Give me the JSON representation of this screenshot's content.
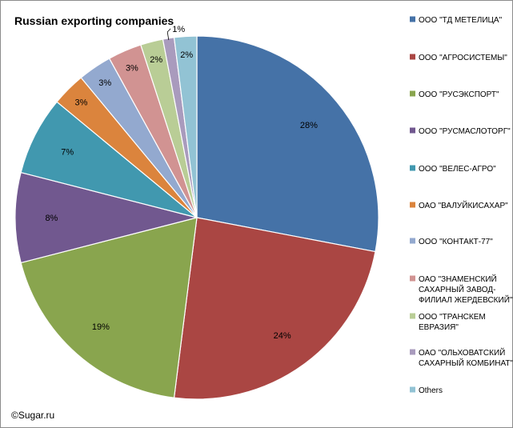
{
  "credit": "©Sugar.ru",
  "chart_data": {
    "type": "pie",
    "title": "Russian exporting companies",
    "start_angle_deg": 0,
    "direction": "clockwise",
    "legend_position": "right",
    "slices": [
      {
        "name": "ООО \"ТД МЕТЕЛИЦА\"",
        "value": 28,
        "label": "28%",
        "color": "#4572A7"
      },
      {
        "name": "ООО \"АГРОСИСТЕМЫ\"",
        "value": 24,
        "label": "24%",
        "color": "#AA4643"
      },
      {
        "name": "ООО \"РУСЭКСПОРТ\"",
        "value": 19,
        "label": "19%",
        "color": "#89A54E"
      },
      {
        "name": "ООО \"РУСМАСЛОТОРГ\"",
        "value": 8,
        "label": "8%",
        "color": "#71588F"
      },
      {
        "name": "ООО \"ВЕЛЕС-АГРО\"",
        "value": 7,
        "label": "7%",
        "color": "#4198AF"
      },
      {
        "name": "ОАО \"ВАЛУЙКИСАХАР\"",
        "value": 3,
        "label": "3%",
        "color": "#DB843D"
      },
      {
        "name": "ООО \"КОНТАКТ-77\"",
        "value": 3,
        "label": "3%",
        "color": "#93A9CF"
      },
      {
        "name": "ОАО \"ЗНАМЕНСКИЙ САХАРНЫЙ ЗАВОД-ФИЛИАЛ ЖЕРДЕВСКИЙ\"",
        "value": 3,
        "label": "3%",
        "color": "#D19392"
      },
      {
        "name": "ООО \"ТРАНСКЕМ ЕВРАЗИЯ\"",
        "value": 2,
        "label": "2%",
        "color": "#B9CD96"
      },
      {
        "name": "ОАО \"ОЛЬХОВАТСКИЙ САХАРНЫЙ КОМБИНАТ\"",
        "value": 1,
        "label": "1%",
        "color": "#A99BBD"
      },
      {
        "name": "Others",
        "value": 2,
        "label": "2%",
        "color": "#92C3D4"
      }
    ]
  }
}
